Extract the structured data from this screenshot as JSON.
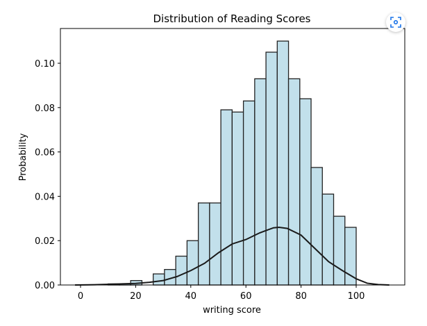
{
  "chart_data": {
    "type": "bar",
    "title": "Distribution of Reading Scores",
    "xlabel": "writing score",
    "ylabel": "Probability",
    "xlim": [
      -5,
      117
    ],
    "ylim": [
      0,
      0.115
    ],
    "xticks": [
      "0",
      "20",
      "40",
      "60",
      "80",
      "100"
    ],
    "yticks": [
      "0.00",
      "0.02",
      "0.04",
      "0.06",
      "0.08",
      "0.10"
    ],
    "bin_range": [
      10,
      100
    ],
    "values": [
      0.0005,
      0.0005,
      0.002,
      0,
      0.005,
      0.007,
      0.013,
      0.02,
      0.037,
      0.037,
      0.079,
      0.078,
      0.083,
      0.093,
      0.105,
      0.11,
      0.093,
      0.084,
      0.053,
      0.041,
      0.031,
      0.026
    ],
    "kde": {
      "x": [
        -2,
        5,
        10,
        15,
        20,
        25,
        30,
        35,
        40,
        45,
        50,
        55,
        60,
        65,
        70,
        72,
        75,
        80,
        85,
        90,
        95,
        100,
        104,
        108,
        112
      ],
      "y": [
        0,
        0.0001,
        0.0003,
        0.0005,
        0.0007,
        0.0012,
        0.002,
        0.0038,
        0.0065,
        0.0098,
        0.0145,
        0.0185,
        0.0205,
        0.0235,
        0.0258,
        0.026,
        0.0255,
        0.0225,
        0.0165,
        0.0105,
        0.0065,
        0.0028,
        0.0008,
        0.0002,
        0
      ]
    },
    "bar_color": "#c2e0eb",
    "grid": false
  },
  "toolbar": {
    "icon": "screenshot-focus-icon"
  }
}
